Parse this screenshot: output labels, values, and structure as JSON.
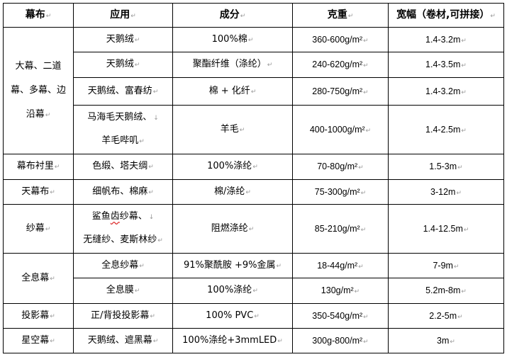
{
  "headers": [
    "幕布",
    "应用",
    "成分",
    "克重",
    "宽幅（卷材,可拼接）"
  ],
  "groups": [
    {
      "category": "大幕、二道幕、多幕、边沿幕",
      "rows": [
        {
          "application": "天鹅绒",
          "composition": "100%棉",
          "weight": "360-600g/m²",
          "width": "1.4-3.2m"
        },
        {
          "application": "天鹅绒",
          "composition": "聚酯纤维（涤纶）",
          "weight": "240-620g/m²",
          "width": "1.4-3.5m"
        },
        {
          "application": "天鹅绒、富春纺",
          "composition": "棉 + 化纤",
          "weight": "280-750g/m²",
          "width": "1.4-3.2m"
        },
        {
          "application_line1": "马海毛天鹅绒、",
          "application_line2": "羊毛哔叽",
          "composition": "羊毛",
          "weight": "400-1000g/m²",
          "width": "1.4-2.5m"
        }
      ]
    },
    {
      "category": "幕布衬里",
      "rows": [
        {
          "application": "色缎、塔夫绸",
          "composition": "100%涤纶",
          "weight": "70-80g/m²",
          "width": "1.5-3m"
        }
      ]
    },
    {
      "category": "天幕布",
      "rows": [
        {
          "application": "细帆布、棉麻",
          "composition": "棉/涤纶",
          "weight": "75-300g/m²",
          "width": "3-12m"
        }
      ]
    },
    {
      "category": "纱幕",
      "rows": [
        {
          "application_line1": "鲨鱼",
          "application_line1_flagged": "齿",
          "application_line1_end": "纱幕、",
          "application_line2": "无缝纱、麦斯林纱",
          "composition": "阻燃涤纶",
          "weight": "85-210g/m²",
          "width": "1.4-12.5m"
        }
      ]
    },
    {
      "category": "全息幕",
      "rows": [
        {
          "application": "全息纱幕",
          "composition": "91%聚酰胺 +9%金属",
          "weight": "18-44g/m²",
          "width": "7-9m"
        },
        {
          "application": "全息膜",
          "composition": "100%涤纶",
          "weight": "130g/m²",
          "width": "5.2m-8m"
        }
      ]
    },
    {
      "category": "投影幕",
      "rows": [
        {
          "application": "正/背投投影幕",
          "composition": "100% PVC",
          "weight": "350-540g/m²",
          "width": "2.2-5m"
        }
      ]
    },
    {
      "category": "星空幕",
      "rows": [
        {
          "application": "天鹅绒、遮黑幕",
          "composition": "100%涤纶+3mmLED",
          "weight": "300g-800/m²",
          "width": "3m"
        }
      ]
    }
  ]
}
